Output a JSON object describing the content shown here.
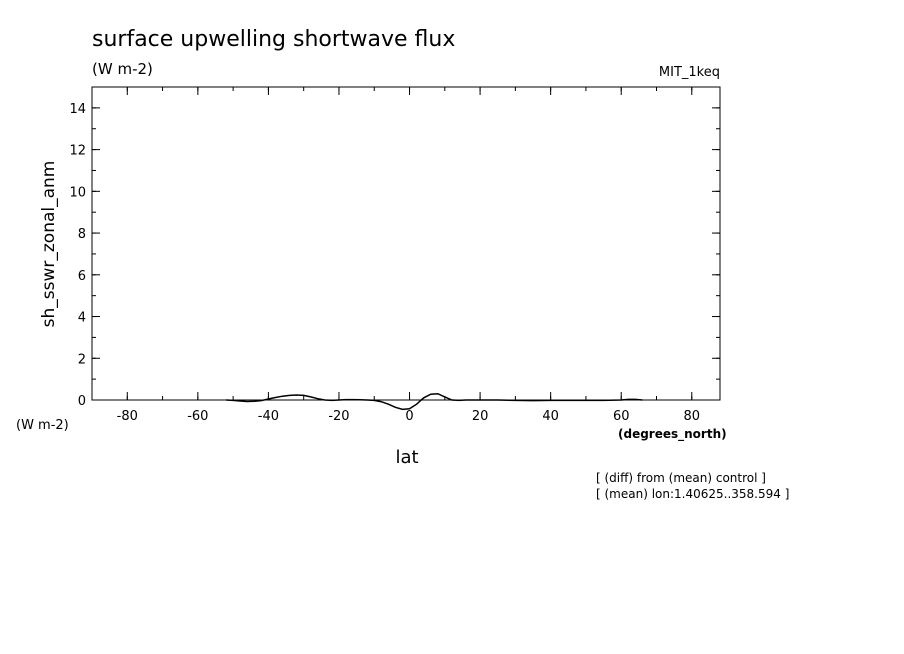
{
  "chart_data": {
    "type": "line",
    "title": "surface upwelling shortwave flux",
    "subtitle": "(W m-2)",
    "model_label": "MIT_1keq",
    "ylabel": "sh_sswr_zonal_anm",
    "y_units_label": "(W m-2)",
    "xlabel": "lat",
    "x_units_label": "(degrees_north)",
    "xlim": [
      -90,
      88
    ],
    "ylim": [
      0,
      15
    ],
    "x_ticks": [
      -80,
      -60,
      -40,
      -20,
      0,
      20,
      40,
      60,
      80
    ],
    "x_tick_labels": [
      "-80",
      "-60",
      "-40",
      "-20",
      "0",
      "20",
      "40",
      "60",
      "80"
    ],
    "y_ticks": [
      0,
      2,
      4,
      6,
      8,
      10,
      12,
      14
    ],
    "y_tick_labels": [
      "0",
      "2",
      "4",
      "6",
      "8",
      "10",
      "12",
      "14"
    ],
    "grid": false,
    "line_color": "#000000",
    "annotations": [
      "[ (diff) from (mean) control ]",
      "[ (mean) lon:1.40625..358.594 ]"
    ],
    "series": [
      {
        "x": [
          -52,
          -50,
          -48,
          -46,
          -44,
          -42,
          -40,
          -38,
          -36,
          -34,
          -32,
          -30,
          -28,
          -26,
          -24,
          -22,
          -20,
          -18,
          -16,
          -14,
          -12,
          -10,
          -8,
          -6,
          -4,
          -2,
          0,
          2,
          4,
          6,
          8,
          10,
          12,
          14,
          16,
          20,
          25,
          30,
          35,
          40,
          45,
          50,
          55,
          60,
          62,
          64,
          66
        ],
        "y": [
          0.0,
          -0.02,
          -0.05,
          -0.07,
          -0.06,
          -0.03,
          0.05,
          0.12,
          0.18,
          0.22,
          0.24,
          0.22,
          0.15,
          0.06,
          0.0,
          -0.02,
          0.0,
          0.02,
          0.02,
          0.01,
          0.0,
          -0.02,
          -0.08,
          -0.2,
          -0.35,
          -0.45,
          -0.42,
          -0.2,
          0.1,
          0.28,
          0.3,
          0.15,
          0.0,
          -0.02,
          0.0,
          0.0,
          0.0,
          -0.02,
          -0.03,
          -0.02,
          -0.02,
          -0.02,
          -0.02,
          0.0,
          0.03,
          0.03,
          0.0
        ]
      }
    ]
  }
}
